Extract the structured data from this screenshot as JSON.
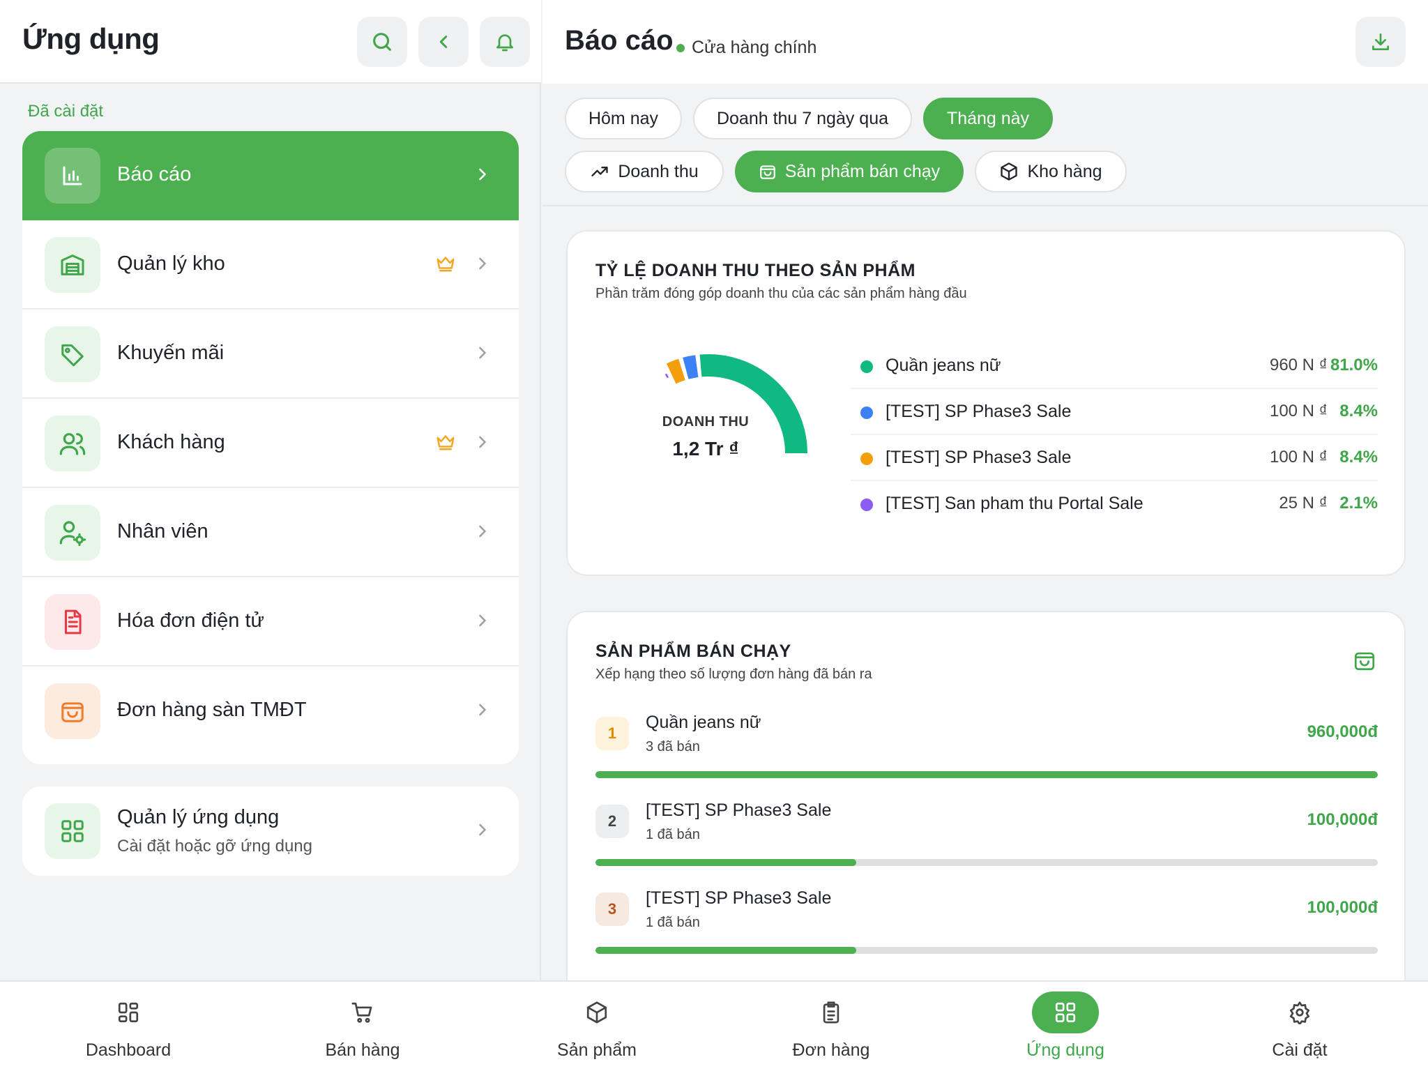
{
  "left": {
    "title": "Ứng dụng",
    "section_label": "Đã cài đặt",
    "menu": [
      {
        "label": "Báo cáo",
        "icon": "bar-chart-icon",
        "active": true
      },
      {
        "label": "Quản lý kho",
        "icon": "warehouse-icon",
        "premium": true
      },
      {
        "label": "Khuyến mãi",
        "icon": "tag-icon"
      },
      {
        "label": "Khách hàng",
        "icon": "users-icon",
        "premium": true
      },
      {
        "label": "Nhân viên",
        "icon": "user-gear-icon"
      },
      {
        "label": "Hóa đơn điện tử",
        "icon": "invoice-icon"
      },
      {
        "label": "Đơn hàng sàn TMĐT",
        "icon": "shopping-bag-icon"
      }
    ],
    "manager": {
      "title": "Quản lý ứng dụng",
      "subtitle": "Cài đặt hoặc gỡ ứng dụng"
    }
  },
  "right": {
    "title": "Báo cáo",
    "store": "Cửa hàng chính",
    "periods": [
      "Hôm nay",
      "Doanh thu 7 ngày qua",
      "Tháng này"
    ],
    "active_period": "Tháng này",
    "report_tabs": [
      "Doanh thu",
      "Sản phẩm bán chạy",
      "Kho hàng"
    ],
    "active_report_tab": "Sản phẩm bán chạy",
    "share_card": {
      "title": "TỶ LỆ DOANH THU THEO SẢN PHẨM",
      "subtitle": "Phần trăm đóng góp doanh thu của các sản phẩm hàng đầu",
      "center_label": "DOANH THU",
      "center_value": "1,2 Tr ₫"
    },
    "top_card": {
      "title": "SẢN PHẨM BÁN CHẠY",
      "subtitle": "Xếp hạng theo số lượng đơn hàng đã bán ra",
      "products": [
        {
          "rank": "1",
          "name": "Quần jeans nữ",
          "sold": "3 đã bán",
          "value": "960,000đ",
          "share": 1.0
        },
        {
          "rank": "2",
          "name": "[TEST] SP Phase3 Sale",
          "sold": "1 đã bán",
          "value": "100,000đ",
          "share": 0.333
        },
        {
          "rank": "3",
          "name": "[TEST] SP Phase3 Sale",
          "sold": "1 đã bán",
          "value": "100,000đ",
          "share": 0.333
        }
      ]
    }
  },
  "chart_data": {
    "type": "pie",
    "title": "TỶ LỆ DOANH THU THEO SẢN PHẨM",
    "series": [
      {
        "name": "Quần jeans nữ",
        "value_label": "960 N ₫",
        "percent": 81.0,
        "pct_label": "81.0%",
        "color": "#10b981"
      },
      {
        "name": "[TEST] SP Phase3 Sale",
        "value_label": "100 N ₫",
        "percent": 8.4,
        "pct_label": "8.4%",
        "color": "#3b82f6"
      },
      {
        "name": "[TEST] SP Phase3 Sale",
        "value_label": "100 N ₫",
        "percent": 8.4,
        "pct_label": "8.4%",
        "color": "#f59e0b"
      },
      {
        "name": "[TEST] San pham thu Portal Sale",
        "value_label": "25 N ₫",
        "percent": 2.1,
        "pct_label": "2.1%",
        "color": "#8b5cf6"
      }
    ]
  },
  "bottom_nav": [
    {
      "label": "Dashboard",
      "icon": "grid-icon"
    },
    {
      "label": "Bán hàng",
      "icon": "cart-icon"
    },
    {
      "label": "Sản phẩm",
      "icon": "box-icon"
    },
    {
      "label": "Đơn hàng",
      "icon": "clipboard-icon"
    },
    {
      "label": "Ứng dụng",
      "icon": "apps-icon",
      "active": true
    },
    {
      "label": "Cài đặt",
      "icon": "settings-icon"
    }
  ],
  "colors": {
    "accent": "#4caf50",
    "accent_text": "#3fa64a",
    "crown": "#f5a623"
  }
}
